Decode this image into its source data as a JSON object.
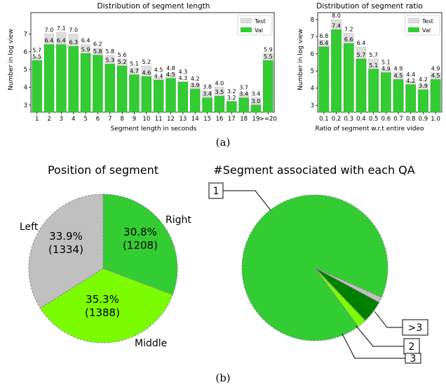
{
  "captions": {
    "a": "(a)",
    "b": "(b)"
  },
  "colors": {
    "val": "#33cc33",
    "test": "#dddddd",
    "left": "#c0c0c0",
    "middle": "#7cfc00",
    "right": "#33cc33",
    "one": "#33cc33",
    "two": "#008000",
    "three": "#7cfc00",
    "more": "#c0c0c0"
  },
  "chart_data": [
    {
      "type": "bar",
      "title": "Distribution of segment length",
      "xlabel": "Segment length in seconds",
      "ylabel": "Number in log view",
      "ylim": [
        2.6,
        8.2
      ],
      "yticks": [
        "3",
        "4",
        "5",
        "6",
        "7"
      ],
      "legend": "top-right",
      "categories": [
        "1",
        "2",
        "3",
        "4",
        "5",
        "6",
        "7",
        "8",
        "9",
        "10",
        "11",
        "12",
        "13",
        "14",
        "15",
        "16",
        "17",
        "18",
        "19",
        ">=20"
      ],
      "series": [
        {
          "name": "Test",
          "values": [
            5.7,
            7.0,
            7.1,
            7.0,
            6.4,
            6.2,
            5.8,
            5.6,
            5.1,
            5.2,
            4.5,
            4.8,
            4.3,
            4.2,
            3.8,
            4.0,
            3.2,
            3.7,
            3.4,
            5.9
          ]
        },
        {
          "name": "Val",
          "values": [
            5.5,
            6.4,
            6.4,
            6.3,
            5.9,
            5.8,
            5.3,
            5.2,
            4.7,
            4.6,
            4.4,
            4.5,
            4.3,
            3.9,
            3.4,
            3.5,
            3.2,
            3.4,
            3.0,
            5.5
          ]
        }
      ]
    },
    {
      "type": "bar",
      "title": "Distribution of segment ratio",
      "xlabel": "Ratio of segment w.r.t entire video",
      "ylabel": "Number in log view",
      "ylim": [
        2.6,
        8.4
      ],
      "yticks": [
        "3",
        "4",
        "5",
        "6",
        "7",
        "8"
      ],
      "legend": "top-right",
      "categories": [
        "0.1",
        "0.2",
        "0.3",
        "0.4",
        "0.5",
        "0.6",
        "0.7",
        "0.8",
        "0.9",
        "1.0"
      ],
      "series": [
        {
          "name": "Test",
          "values": [
            6.8,
            8.0,
            7.2,
            6.4,
            5.7,
            5.1,
            4.9,
            4.4,
            4.2,
            4.9
          ]
        },
        {
          "name": "Val",
          "values": [
            6.4,
            7.4,
            6.6,
            5.7,
            5.1,
            4.9,
            4.5,
            4.2,
            3.9,
            4.5
          ]
        }
      ]
    },
    {
      "type": "pie",
      "title": "Position of segment",
      "slices": [
        {
          "label": "Right",
          "pct": "30.8%",
          "count": "(1208)",
          "value": 1208
        },
        {
          "label": "Middle",
          "pct": "35.3%",
          "count": "(1388)",
          "value": 1388
        },
        {
          "label": "Left",
          "pct": "33.9%",
          "count": "(1334)",
          "value": 1334
        }
      ]
    },
    {
      "type": "pie",
      "title": "#Segment associated with each QA",
      "slices": [
        {
          "label": "1",
          "value": 91.8
        },
        {
          "label": ">3",
          "value": 1.2
        },
        {
          "label": "2",
          "value": 5.0
        },
        {
          "label": "3",
          "value": 2.0
        }
      ]
    }
  ]
}
